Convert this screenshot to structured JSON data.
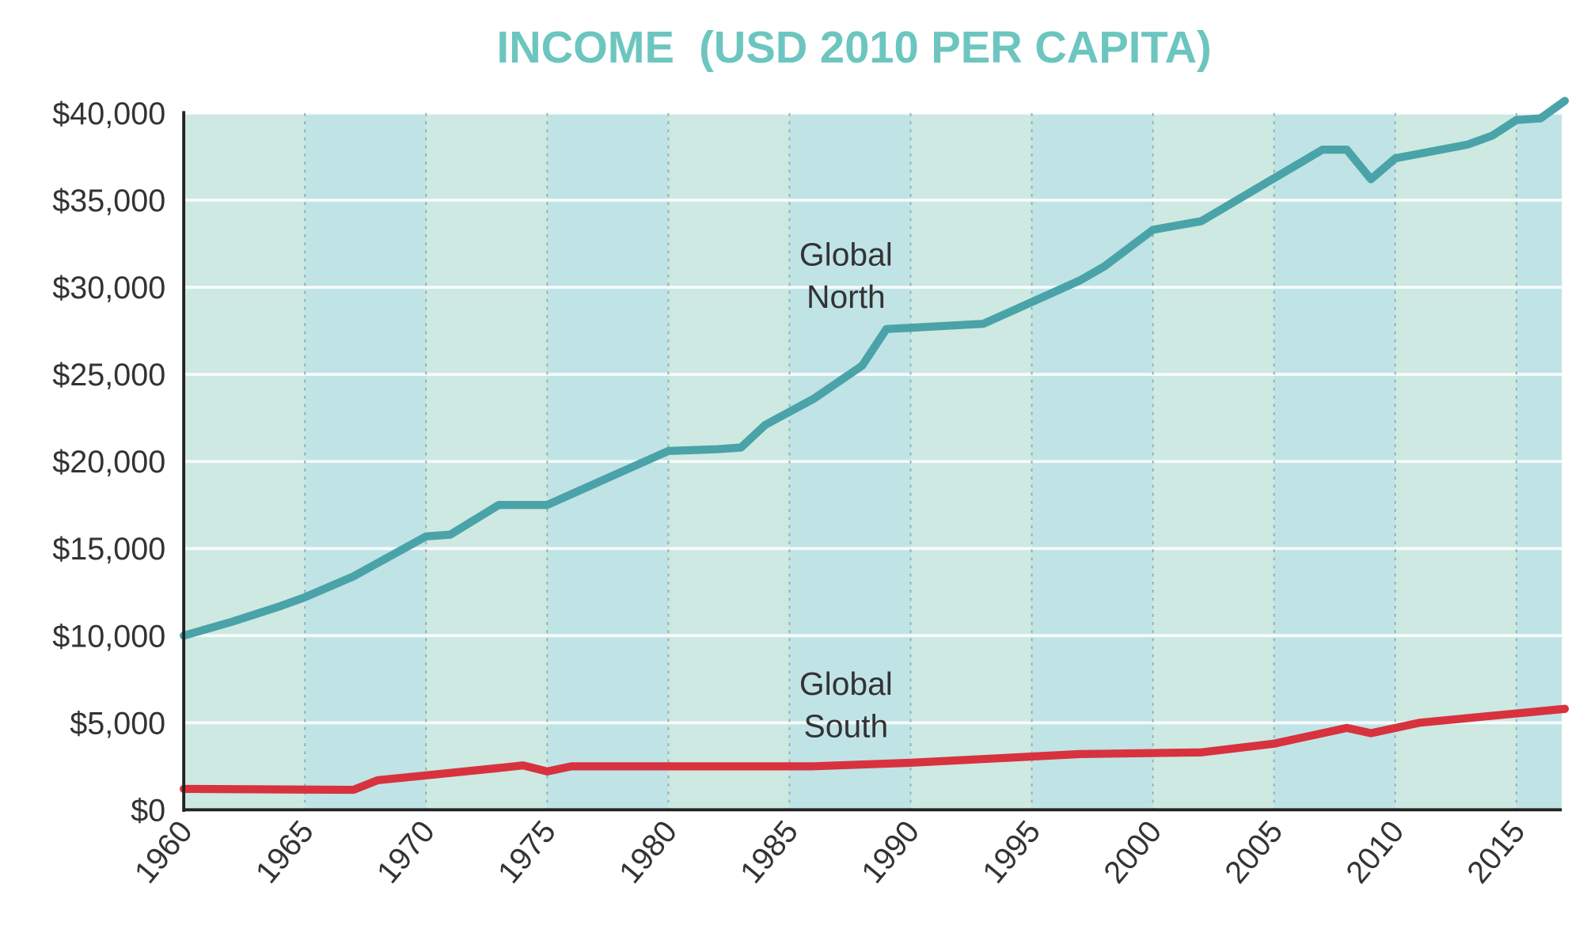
{
  "chart_data": {
    "type": "line",
    "title": "INCOME  (USD 2010 PER CAPITA)",
    "xlabel": "",
    "ylabel": "",
    "xlim": [
      1960,
      2017
    ],
    "ylim": [
      0,
      40000
    ],
    "grid": true,
    "x_ticks": [
      "1960",
      "1965",
      "1970",
      "1975",
      "1980",
      "1985",
      "1990",
      "1995",
      "2000",
      "2005",
      "2010",
      "2015"
    ],
    "y_ticks": [
      "$0",
      "$5,000",
      "$10,000",
      "$15,000",
      "$20,000",
      "$25,000",
      "$30,000",
      "$35,000",
      "$40,000"
    ],
    "series": [
      {
        "name": "Global North",
        "label_lines": [
          "Global",
          "North"
        ],
        "color": "#4aa3a8",
        "points": [
          [
            1960,
            10000
          ],
          [
            1962,
            10800
          ],
          [
            1964,
            11700
          ],
          [
            1965,
            12200
          ],
          [
            1967,
            13400
          ],
          [
            1970,
            15700
          ],
          [
            1971,
            15800
          ],
          [
            1973,
            17500
          ],
          [
            1975,
            17500
          ],
          [
            1980,
            20600
          ],
          [
            1982,
            20700
          ],
          [
            1983,
            20800
          ],
          [
            1984,
            22100
          ],
          [
            1986,
            23600
          ],
          [
            1988,
            25500
          ],
          [
            1989,
            27600
          ],
          [
            1993,
            27900
          ],
          [
            1997,
            30400
          ],
          [
            1998,
            31200
          ],
          [
            2000,
            33300
          ],
          [
            2002,
            33800
          ],
          [
            2007,
            37900
          ],
          [
            2008,
            37900
          ],
          [
            2009,
            36200
          ],
          [
            2010,
            37400
          ],
          [
            2013,
            38200
          ],
          [
            2014,
            38700
          ],
          [
            2015,
            39600
          ],
          [
            2016,
            39700
          ],
          [
            2017,
            40700
          ]
        ]
      },
      {
        "name": "Global South",
        "label_lines": [
          "Global",
          "South"
        ],
        "color": "#d8323f",
        "points": [
          [
            1960,
            1200
          ],
          [
            1967,
            1150
          ],
          [
            1968,
            1700
          ],
          [
            1973,
            2400
          ],
          [
            1974,
            2550
          ],
          [
            1975,
            2200
          ],
          [
            1976,
            2500
          ],
          [
            1986,
            2500
          ],
          [
            1990,
            2700
          ],
          [
            1997,
            3200
          ],
          [
            2002,
            3300
          ],
          [
            2005,
            3800
          ],
          [
            2008,
            4700
          ],
          [
            2009,
            4400
          ],
          [
            2011,
            5000
          ],
          [
            2017,
            5800
          ]
        ]
      }
    ],
    "colors": {
      "band_a": "#cde9e1",
      "band_b": "#c0e3e6",
      "title": "#6cc6bf"
    }
  }
}
